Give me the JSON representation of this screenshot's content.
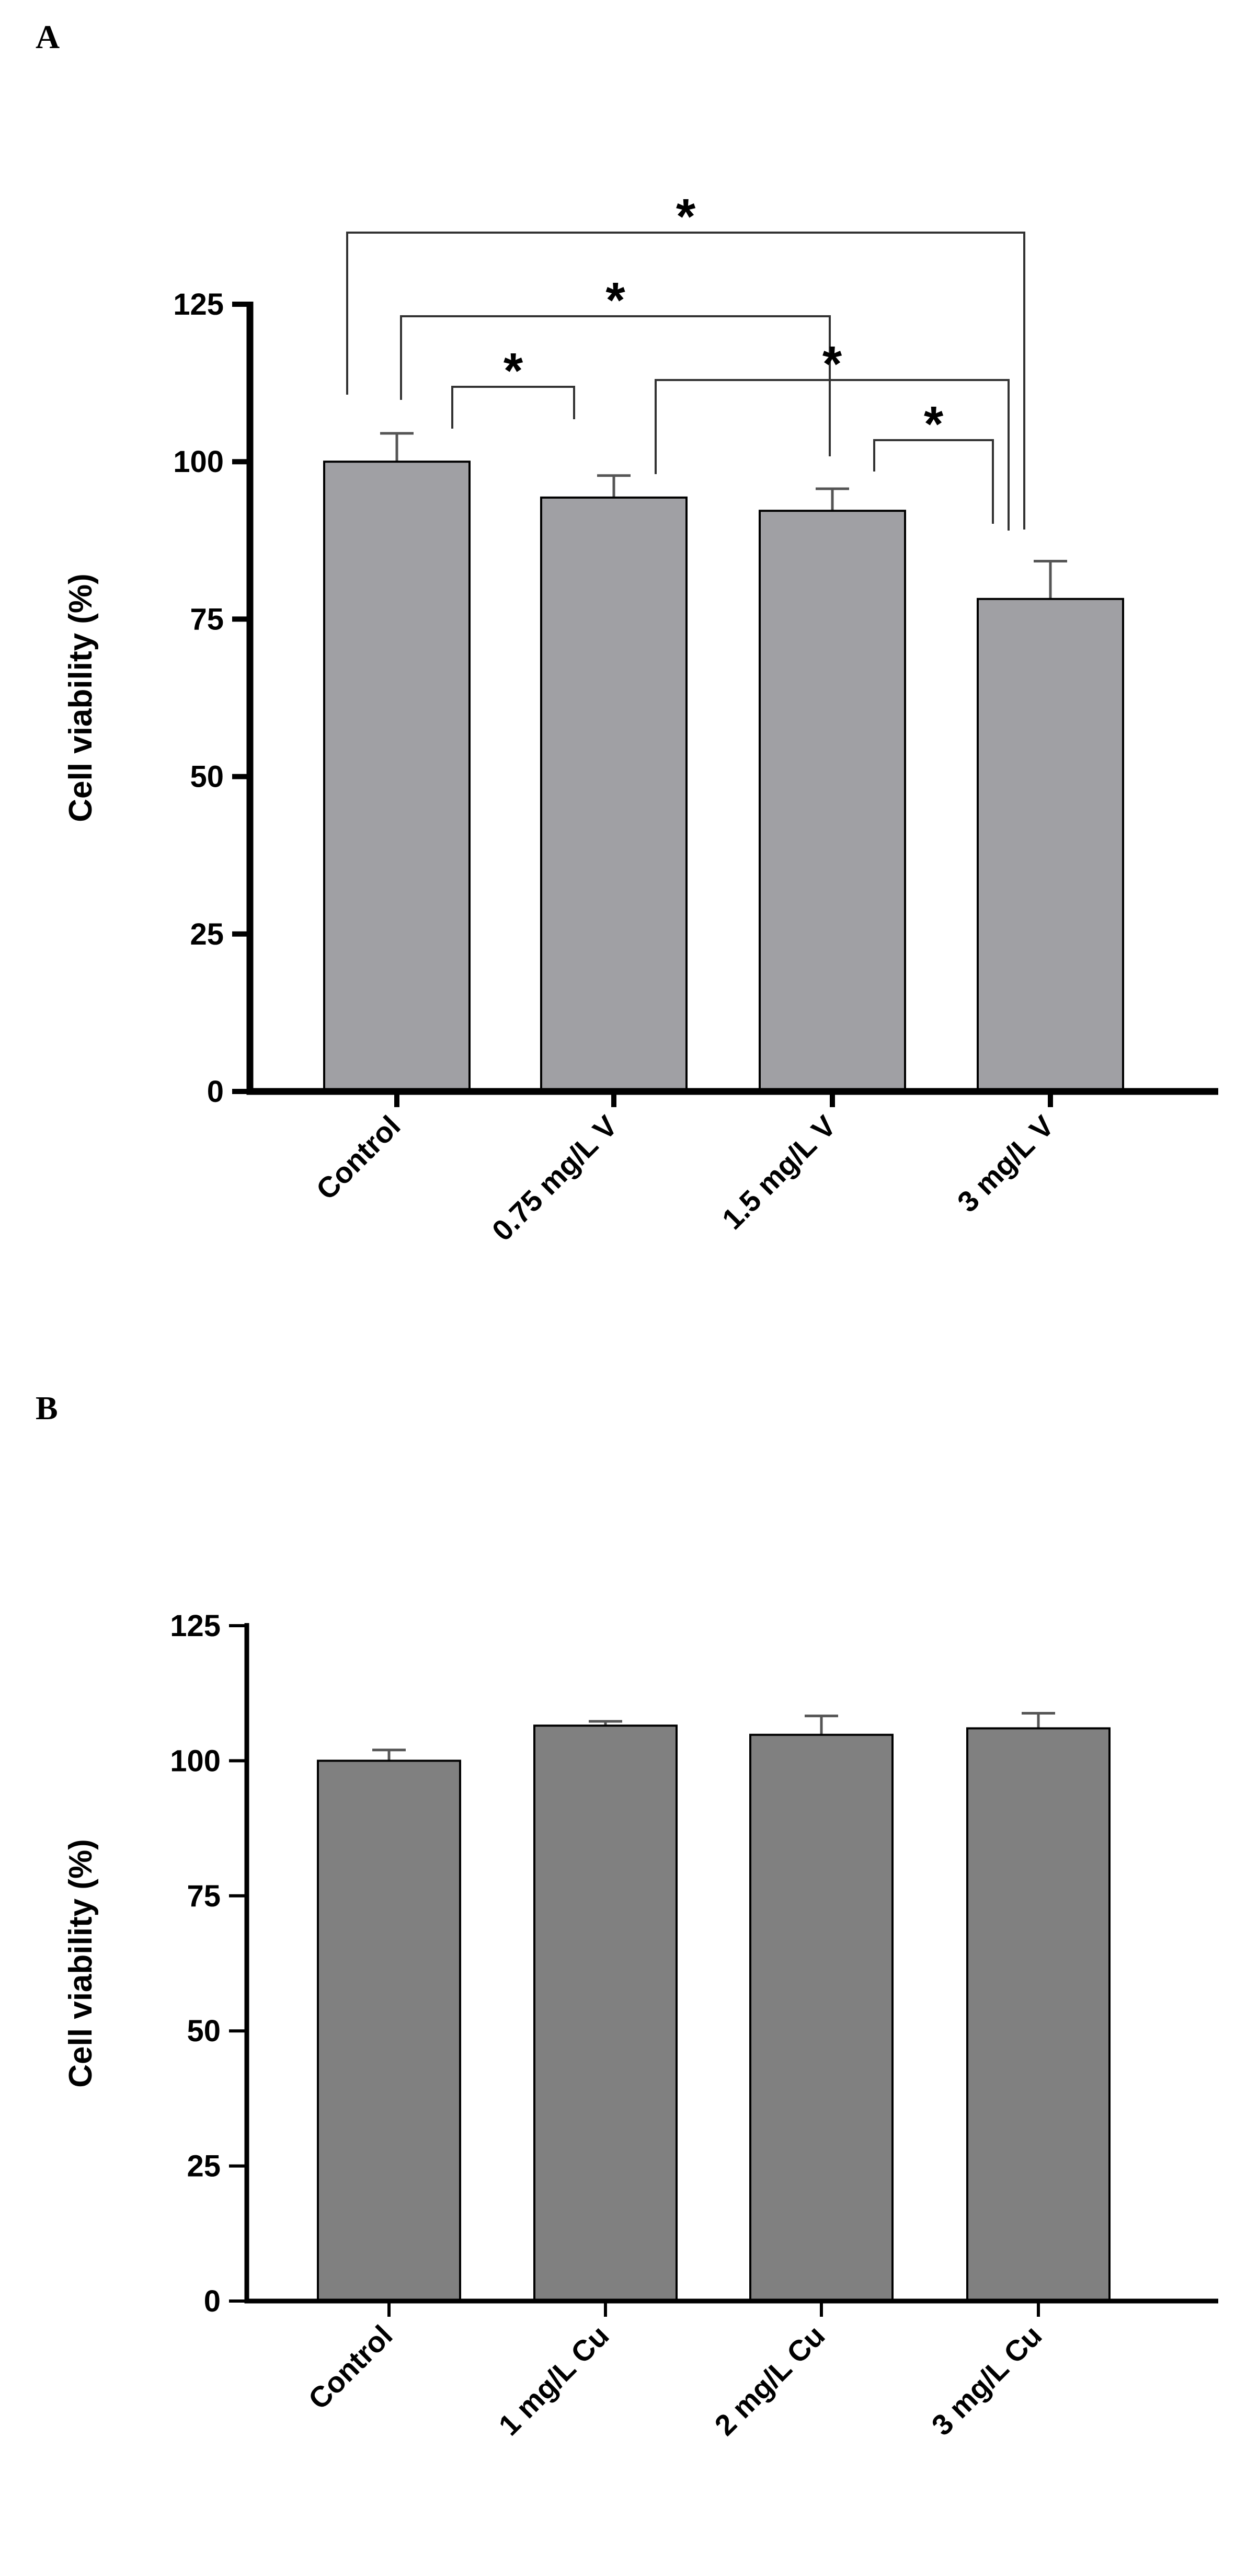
{
  "chart_data": [
    {
      "panel": "A",
      "type": "bar",
      "ylabel": "Cell viability (%)",
      "xlabel": "",
      "ylim": [
        0,
        125
      ],
      "yticks": [
        0,
        25,
        50,
        75,
        100,
        125
      ],
      "categories": [
        "Control",
        "0.75 mg/L V",
        "1.5 mg/L V",
        "3 mg/L V"
      ],
      "values": [
        100,
        94.3,
        92.2,
        78.2
      ],
      "errors": [
        4.5,
        3.5,
        3.5,
        6.0
      ],
      "bar_color": "#a0a0a4",
      "significance": [
        {
          "from": "Control",
          "to": "0.75 mg/L V",
          "label": "*"
        },
        {
          "from": "Control",
          "to": "1.5 mg/L V",
          "label": "*"
        },
        {
          "from": "Control",
          "to": "3 mg/L V",
          "label": "*"
        },
        {
          "from": "0.75 mg/L V",
          "to": "3 mg/L V",
          "label": "*"
        },
        {
          "from": "1.5 mg/L V",
          "to": "3 mg/L V",
          "label": "*"
        }
      ]
    },
    {
      "panel": "B",
      "type": "bar",
      "ylabel": "Cell viability (%)",
      "xlabel": "",
      "ylim": [
        0,
        125
      ],
      "yticks": [
        0,
        25,
        50,
        75,
        100,
        125
      ],
      "categories": [
        "Control",
        "1 mg/L Cu",
        "2 mg/L Cu",
        "3 mg/L Cu"
      ],
      "values": [
        100,
        106.5,
        104.8,
        106.0
      ],
      "errors": [
        2.0,
        0.8,
        3.5,
        2.8
      ],
      "bar_color": "#808080",
      "significance": []
    }
  ]
}
